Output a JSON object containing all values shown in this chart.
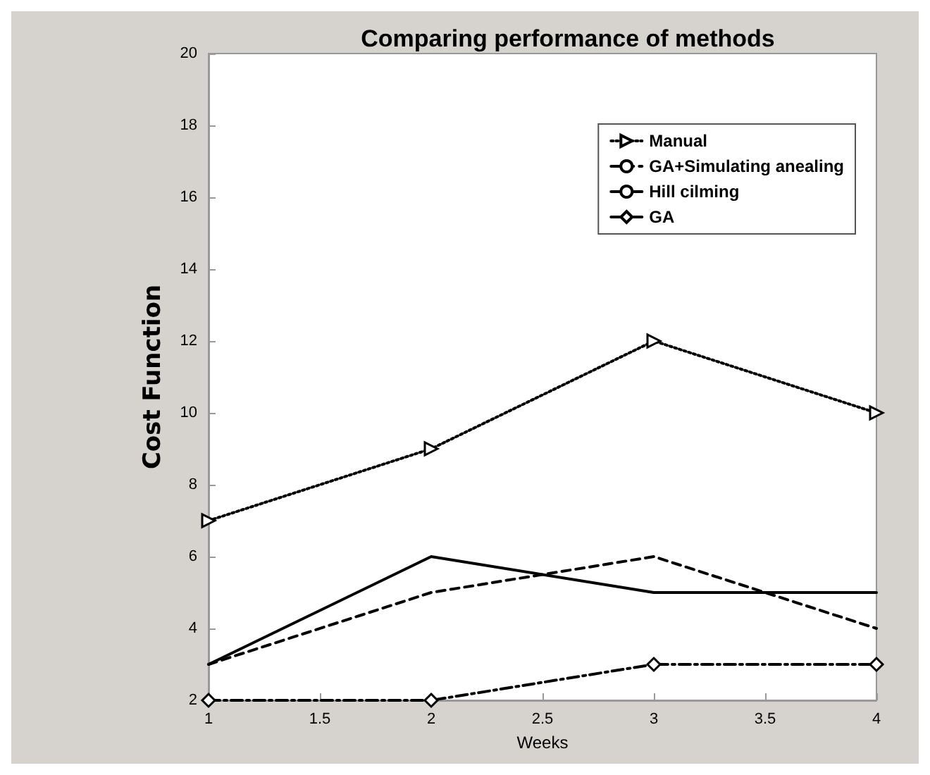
{
  "chart_data": {
    "type": "line",
    "title": "Comparing performance of methods",
    "xlabel": "Weeks",
    "ylabel": "Cost Function",
    "x": [
      1,
      2,
      3,
      4
    ],
    "series": [
      {
        "name": "Manual",
        "color": "#000000",
        "values": [
          7,
          9,
          12,
          10
        ],
        "line_style": "dotted",
        "marker": "triangle"
      },
      {
        "name": "GA+Simulating anealing",
        "color": "#000000",
        "values": [
          3,
          5,
          6,
          4
        ],
        "line_style": "dashed",
        "marker": "none"
      },
      {
        "name": "Hill cilming",
        "color": "#000000",
        "values": [
          3,
          6,
          5,
          5
        ],
        "line_style": "solid",
        "marker": "none"
      },
      {
        "name": "GA",
        "color": "#000000",
        "values": [
          2,
          2,
          3,
          3
        ],
        "line_style": "dashdot",
        "marker": "diamond"
      }
    ],
    "xlim": [
      1,
      4
    ],
    "xticks": [
      1,
      1.5,
      2,
      2.5,
      3,
      3.5,
      4
    ],
    "ylim": [
      2,
      20
    ],
    "yticks": [
      2,
      4,
      6,
      8,
      10,
      12,
      14,
      16,
      18,
      20
    ],
    "grid": false,
    "legend": "top right"
  }
}
